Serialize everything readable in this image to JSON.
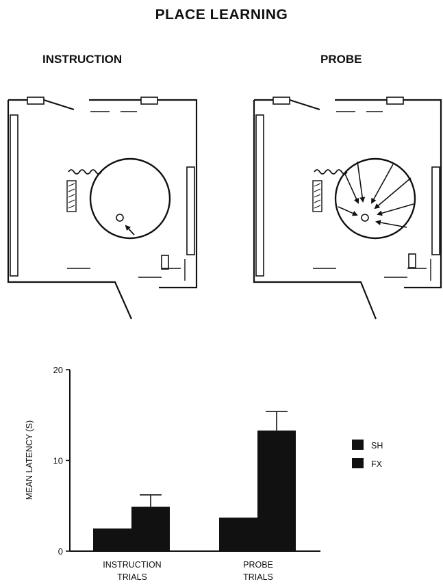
{
  "figure": {
    "title": "PLACE LEARNING",
    "panels": [
      {
        "label": "INSTRUCTION"
      },
      {
        "label": "PROBE"
      }
    ]
  },
  "chart_data": {
    "type": "bar",
    "title": "",
    "xlabel": "",
    "ylabel": "MEAN LATENCY (S)",
    "ylim": [
      0,
      20
    ],
    "yticks": [
      "0",
      "10",
      "20"
    ],
    "categories": [
      {
        "line1": "INSTRUCTION",
        "line2": "TRIALS"
      },
      {
        "line1": "PROBE",
        "line2": "TRIALS"
      }
    ],
    "series": [
      {
        "name": "SH",
        "values": [
          2.5,
          3.7
        ],
        "error": [
          null,
          null
        ],
        "color": "#111111"
      },
      {
        "name": "FX",
        "values": [
          4.9,
          13.3
        ],
        "error": [
          1.3,
          2.1
        ],
        "color": "#111111"
      }
    ],
    "legend_position": "right",
    "grid": false
  }
}
